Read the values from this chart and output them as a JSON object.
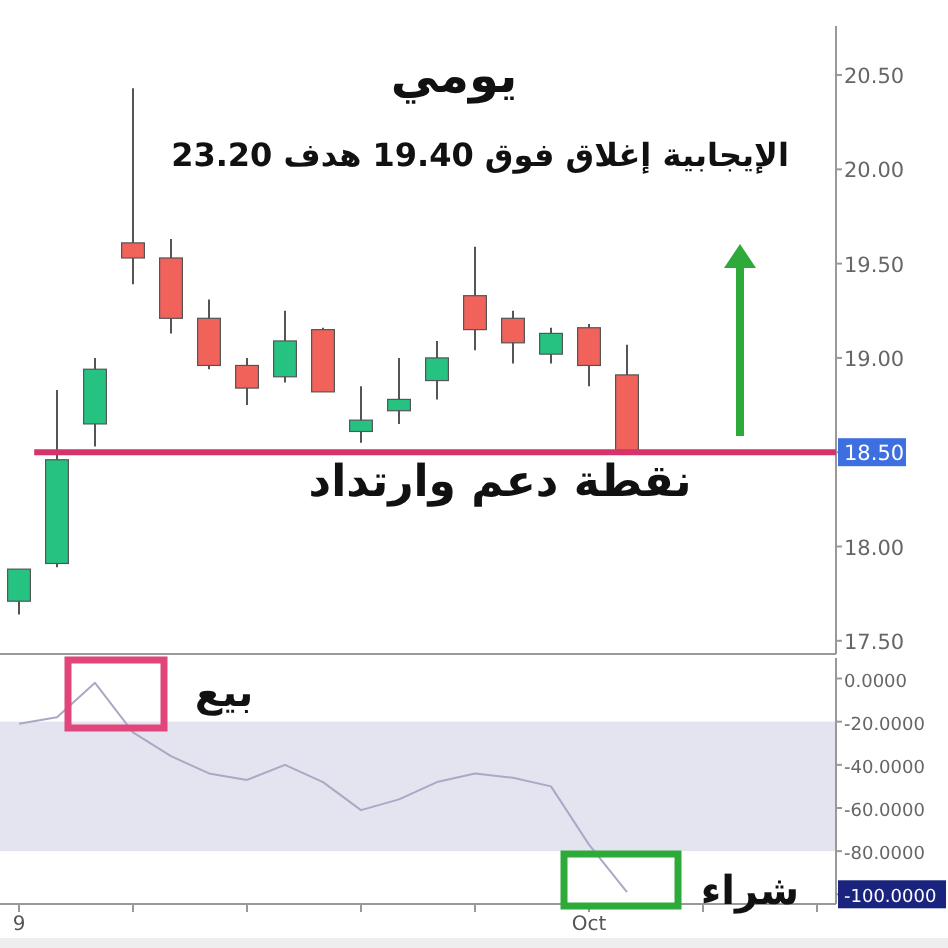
{
  "chart_data": [
    {
      "type": "candlestick",
      "title": "يومي",
      "subtitle": "الإيجابية إغلاق فوق 19.40 هدف 23.20",
      "categories": [
        null,
        null,
        null,
        null,
        null,
        null,
        null,
        null,
        null,
        null,
        null,
        null,
        null,
        null,
        null,
        null,
        null,
        null,
        null,
        null,
        null,
        null
      ],
      "ohlc": [
        [
          17.71,
          17.88,
          17.64,
          17.88
        ],
        [
          17.91,
          18.83,
          17.89,
          18.46
        ],
        [
          18.65,
          19.0,
          18.53,
          18.94
        ],
        [
          19.61,
          20.43,
          19.39,
          19.53
        ],
        [
          19.53,
          19.63,
          19.13,
          19.21
        ],
        [
          19.21,
          19.31,
          18.94,
          18.96
        ],
        [
          18.96,
          19.0,
          18.75,
          18.84
        ],
        [
          18.9,
          19.25,
          18.87,
          19.09
        ],
        [
          19.15,
          19.16,
          18.82,
          18.82
        ],
        [
          18.61,
          18.85,
          18.55,
          18.67
        ],
        [
          18.72,
          19.0,
          18.65,
          18.78
        ],
        [
          18.88,
          19.09,
          18.78,
          19.0
        ],
        [
          19.33,
          19.59,
          19.04,
          19.15
        ],
        [
          19.21,
          19.25,
          18.97,
          19.08
        ],
        [
          19.02,
          19.16,
          18.97,
          19.13
        ],
        [
          19.16,
          19.18,
          18.85,
          18.96
        ],
        [
          18.91,
          19.07,
          18.51,
          18.51
        ],
        null,
        null,
        null,
        null,
        null
      ],
      "colors": [
        "#26c281",
        "#26c281",
        "#26c281",
        "#f0625a",
        "#f0625a",
        "#f0625a",
        "#f0625a",
        "#26c281",
        "#f0625a",
        "#26c281",
        "#26c281",
        "#26c281",
        "#f0625a",
        "#f0625a",
        "#26c281",
        "#f0625a",
        "#f0625a",
        null,
        null,
        null,
        null,
        null
      ],
      "ylim": [
        17.43,
        20.76
      ],
      "yticks": [
        {
          "value": 17.5,
          "label": "17.50"
        },
        {
          "value": 18.0,
          "label": "18.00"
        },
        {
          "value": 18.5,
          "label": "18.50"
        },
        {
          "value": 19.0,
          "label": "19.00"
        },
        {
          "value": 19.5,
          "label": "19.50"
        },
        {
          "value": 20.0,
          "label": "20.00"
        },
        {
          "value": 20.5,
          "label": "20.50"
        }
      ],
      "ref_lines": [
        {
          "axis": "y",
          "value": 18.5,
          "color": "#d6336c"
        }
      ],
      "annotations": [
        "نقطة دعم وارتداد"
      ],
      "tick_labels": "y",
      "grid": false
    },
    {
      "type": "line",
      "categories": [
        "9",
        null,
        null,
        null,
        null,
        null,
        null,
        null,
        null,
        null,
        null,
        null,
        null,
        null,
        null,
        "Oct",
        null,
        null,
        null,
        null,
        null,
        null
      ],
      "series": [
        {
          "color": "#a9a9c6",
          "values": [
            -21,
            -18,
            -2,
            -25,
            -36,
            -44,
            -47,
            -40,
            -48,
            -61,
            -56,
            -48,
            -44,
            -46,
            -50,
            -77,
            -99,
            null,
            null,
            null,
            null,
            null
          ]
        }
      ],
      "ylim": [
        -104.5,
        9.5
      ],
      "yticks": [
        {
          "value": 0,
          "label": "0.0000"
        },
        {
          "value": -20,
          "label": "-20.0000"
        },
        {
          "value": -40,
          "label": "-40.0000"
        },
        {
          "value": -60,
          "label": "-60.0000"
        },
        {
          "value": -80,
          "label": "-80.0000"
        },
        {
          "value": -100,
          "label": "-100.0000"
        }
      ],
      "bands": [
        {
          "axis": "y",
          "from": -80,
          "to": -20,
          "color": "#e4e4f1"
        }
      ],
      "annotations": [
        "بيع",
        "شراء"
      ],
      "grid": false
    }
  ]
}
